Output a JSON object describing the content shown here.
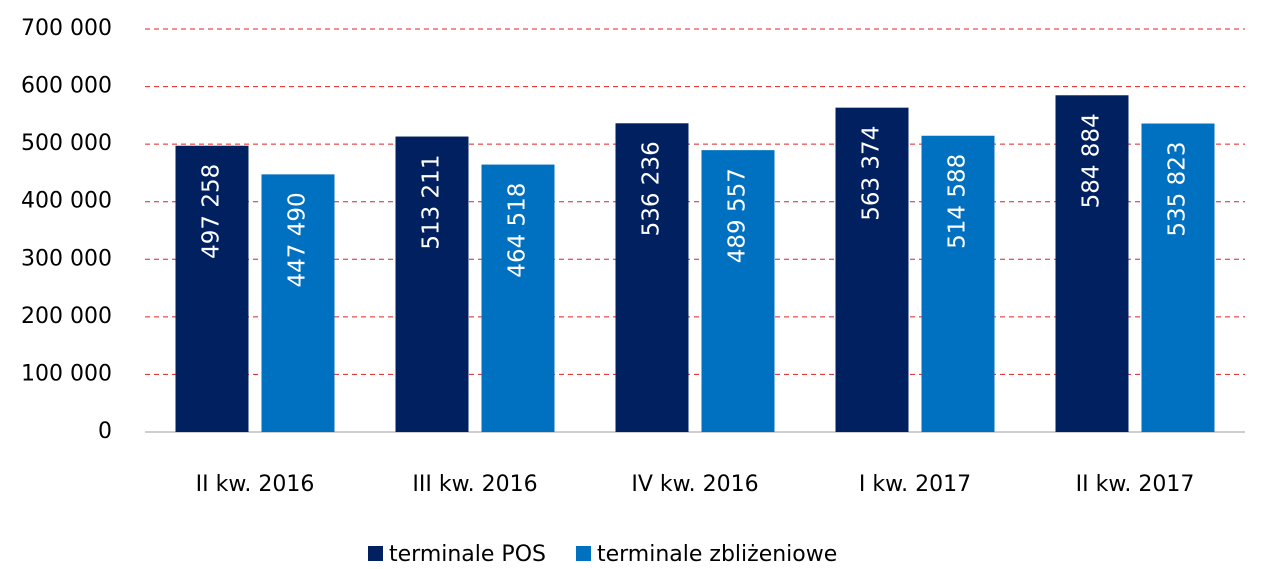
{
  "chart_data": {
    "type": "bar",
    "categories": [
      "II kw. 2016",
      "III kw. 2016",
      "IV kw. 2016",
      "I kw. 2017",
      "II kw. 2017"
    ],
    "series": [
      {
        "name": "terminale POS",
        "color": "#002060",
        "values": [
          497258,
          513211,
          536236,
          563374,
          584884
        ],
        "value_labels": [
          "497 258",
          "513 211",
          "536 236",
          "563 374",
          "584 884"
        ]
      },
      {
        "name": "terminale zbliżeniowe",
        "color": "#0070c0",
        "values": [
          447490,
          464518,
          489557,
          514588,
          535823
        ],
        "value_labels": [
          "447 490",
          "464 518",
          "489 557",
          "514 588",
          "535 823"
        ]
      }
    ],
    "ylim": [
      0,
      700000
    ],
    "yticks": [
      0,
      {
        "value": 100000,
        "label": "100 000"
      },
      {
        "value": 200000,
        "label": "200 000"
      },
      {
        "value": 300000,
        "label": "300 000"
      },
      {
        "value": 400000,
        "label": "400 000"
      },
      {
        "value": 500000,
        "label": "500 000"
      },
      {
        "value": 600000,
        "label": "600 000"
      },
      {
        "value": 700000,
        "label": "700 000"
      }
    ],
    "grid": true,
    "legend": "bottom"
  }
}
